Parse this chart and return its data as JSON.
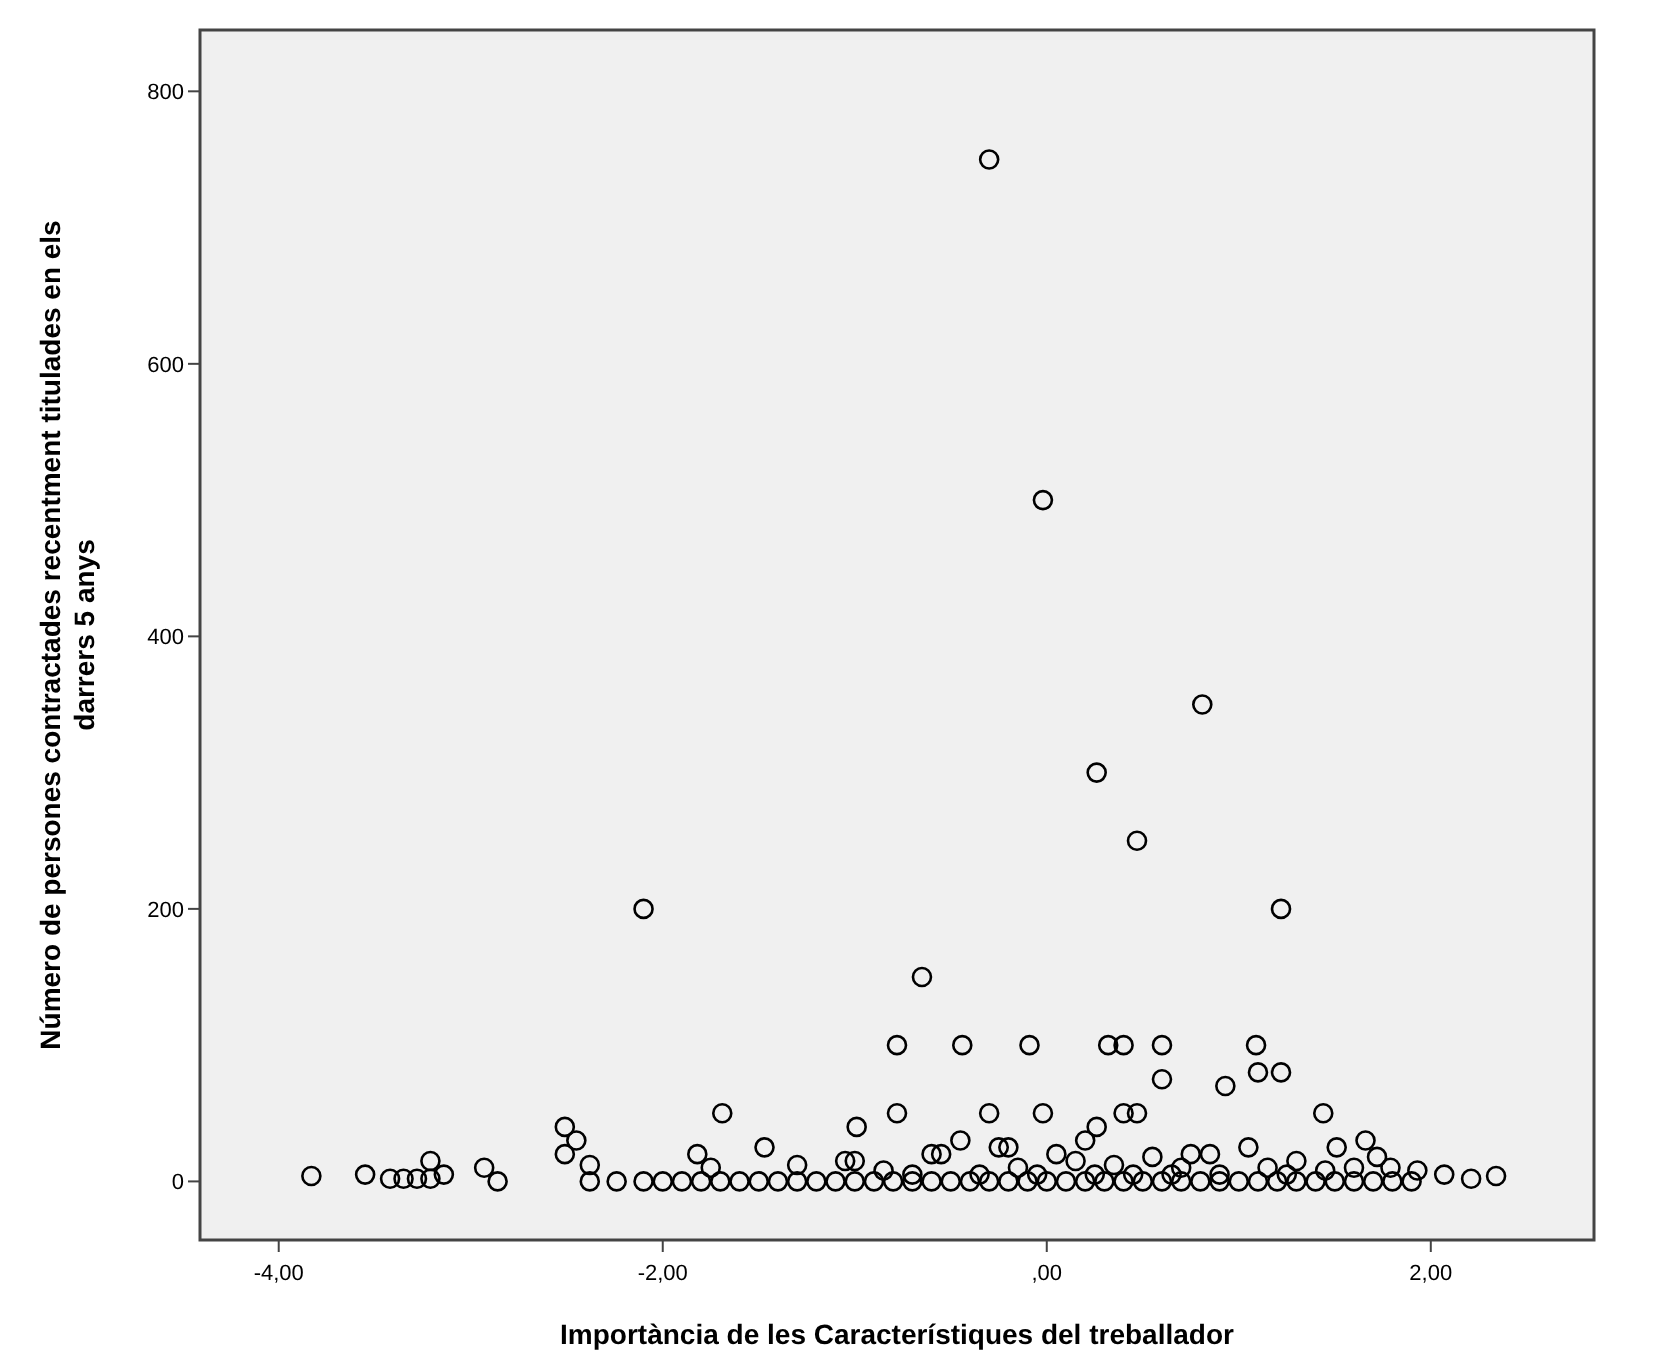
{
  "chart_data": {
    "type": "scatter",
    "xlabel": "Importància de les Característiques del treballador",
    "ylabel": "Número de persones contractades recentment titulades en els darrers 5 anys",
    "xlim": [
      -4.41,
      2.85
    ],
    "ylim": [
      -43,
      845
    ],
    "xticks": [
      {
        "value": -4,
        "label": "-4,00"
      },
      {
        "value": -2,
        "label": "-2,00"
      },
      {
        "value": 0,
        "label": ",00"
      },
      {
        "value": 2,
        "label": "2,00"
      }
    ],
    "yticks": [
      0,
      200,
      400,
      600,
      800
    ],
    "grid": false,
    "marker": "circle",
    "series": [
      {
        "color": "#000000",
        "x": [
          -0.3,
          -0.02,
          0.81,
          0.26,
          0.47,
          -2.1,
          1.22,
          -0.65,
          -0.78,
          -0.44,
          -0.09,
          0.32,
          0.4,
          0.6,
          1.09,
          1.1,
          1.22,
          0.93,
          0.6,
          -1.69,
          -0.78,
          -0.3,
          -0.02,
          0.4,
          0.47,
          1.44,
          -2.51,
          -0.99,
          0.26,
          -2.45,
          -2.51,
          -2.38,
          -1.82,
          -1.47,
          1.66,
          1.72,
          1.51,
          2.34,
          2.21,
          2.07,
          1.93,
          1.79,
          -3.83,
          -3.55,
          -3.42,
          -3.35,
          -3.28,
          -3.21,
          -3.21,
          -3.14,
          -2.93,
          -2.86,
          -2.38,
          -2.24,
          -2.1,
          -2.0,
          -1.9,
          -1.8,
          -1.7,
          -1.6,
          -1.5,
          -1.4,
          -1.3,
          -1.2,
          -1.1,
          -1.0,
          -0.9,
          -0.8,
          -0.7,
          -0.6,
          -0.5,
          -0.4,
          -0.3,
          -0.2,
          -0.1,
          0.0,
          0.1,
          0.2,
          0.3,
          0.4,
          0.5,
          0.6,
          0.7,
          0.8,
          0.9,
          1.0,
          1.1,
          1.2,
          1.3,
          1.4,
          1.5,
          1.6,
          1.7,
          1.8,
          1.9,
          -1.75,
          -1.3,
          -1.05,
          -0.85,
          -0.55,
          -0.45,
          -0.25,
          -0.15,
          0.05,
          0.15,
          0.35,
          0.55,
          0.7,
          0.85,
          1.05,
          1.15,
          1.3,
          1.45,
          1.6,
          -0.7,
          -0.35,
          -0.05,
          0.25,
          0.45,
          0.65,
          0.9,
          1.25,
          -1.0,
          -0.6,
          -0.2,
          0.2,
          0.75
        ],
        "values": [
          750,
          500,
          350,
          300,
          250,
          200,
          200,
          150,
          100,
          100,
          100,
          100,
          100,
          100,
          100,
          80,
          80,
          70,
          75,
          50,
          50,
          50,
          50,
          50,
          50,
          50,
          40,
          40,
          40,
          30,
          20,
          12,
          20,
          25,
          30,
          18,
          25,
          4,
          2,
          5,
          8,
          10,
          4,
          5,
          2,
          2,
          2,
          2,
          15,
          5,
          10,
          0,
          0,
          0,
          0,
          0,
          0,
          0,
          0,
          0,
          0,
          0,
          0,
          0,
          0,
          0,
          0,
          0,
          0,
          0,
          0,
          0,
          0,
          0,
          0,
          0,
          0,
          0,
          0,
          0,
          0,
          0,
          0,
          0,
          0,
          0,
          0,
          0,
          0,
          0,
          0,
          0,
          0,
          0,
          0,
          10,
          12,
          15,
          8,
          20,
          30,
          25,
          10,
          20,
          15,
          12,
          18,
          10,
          20,
          25,
          10,
          15,
          8,
          10,
          5,
          5,
          5,
          5,
          5,
          5,
          5,
          5,
          15,
          20,
          25,
          30,
          20
        ]
      }
    ]
  }
}
